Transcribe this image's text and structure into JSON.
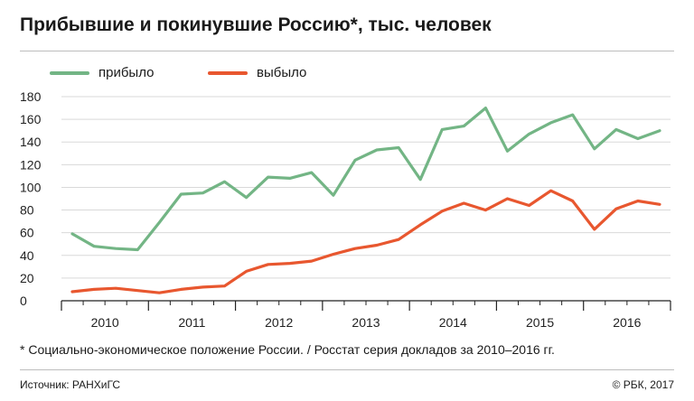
{
  "colors": {
    "arrived": "#73b585",
    "departed": "#e8572f",
    "grid": "#d9d9d9",
    "axis": "#222222"
  },
  "chart_data": {
    "type": "line",
    "title": "Прибывшие и покинувшие Россию*, тыс. человек",
    "xlabel": "",
    "ylabel": "",
    "ylim": [
      0,
      180
    ],
    "yticks": [
      "0",
      "20",
      "40",
      "60",
      "80",
      "100",
      "120",
      "140",
      "160",
      "180"
    ],
    "grid": true,
    "legend_position": "top-left",
    "year_labels": [
      "2010",
      "2011",
      "2012",
      "2013",
      "2014",
      "2015",
      "2016"
    ],
    "quarters_per_year": 4,
    "x": [
      0.5,
      1.5,
      2.5,
      3.5,
      4.5,
      5.5,
      6.5,
      7.5,
      8.5,
      9.5,
      10.5,
      11.5,
      12.5,
      13.5,
      14.5,
      15.5,
      16.5,
      17.5,
      18.5,
      19.5,
      20.5,
      21.5,
      22.5,
      23.5,
      24.5,
      25.5,
      26.5,
      27.5
    ],
    "series": [
      {
        "name": "прибыло",
        "color": "#73b585",
        "values": [
          59,
          48,
          46,
          45,
          69,
          94,
          95,
          105,
          91,
          109,
          108,
          113,
          93,
          124,
          133,
          135,
          107,
          151,
          154,
          170,
          132,
          147,
          157,
          164,
          134,
          151,
          143,
          150
        ]
      },
      {
        "name": "выбыло",
        "color": "#e8572f",
        "values": [
          8,
          10,
          11,
          9,
          7,
          10,
          12,
          13,
          26,
          32,
          33,
          35,
          41,
          46,
          49,
          54,
          67,
          79,
          86,
          80,
          90,
          84,
          97,
          88,
          63,
          81,
          88,
          85
        ]
      }
    ]
  },
  "footer": {
    "note": "* Социально-экономическое положение России. / Росстат серия докладов за 2010–2016 гг.",
    "source": "Источник: РАНХиГС",
    "copyright": "© РБК, 2017"
  }
}
